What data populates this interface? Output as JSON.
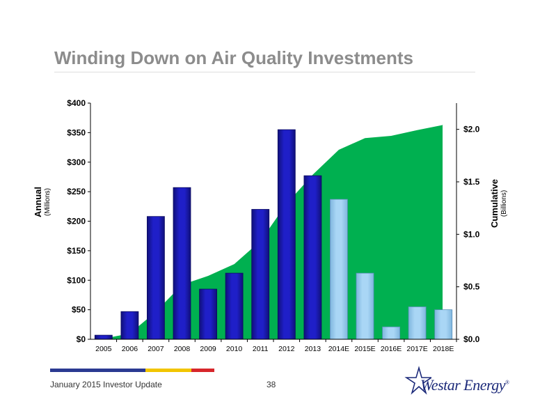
{
  "header": {
    "title": "Winding Down on Air Quality Investments"
  },
  "footer": {
    "left_text": "January 2015 Investor Update",
    "page_number": "38"
  },
  "logo": {
    "text": "Westar Energy",
    "mark": "®"
  },
  "colors": {
    "actual_bar": "#1f1fc8",
    "estimate_bar": "#a9d6f5",
    "cumulative_area": "#00b050",
    "footer_blue": "#2b3a92",
    "footer_yellow": "#f2c500",
    "footer_red": "#d7262b"
  },
  "chart_data": {
    "type": "bar",
    "categories": [
      "2005",
      "2006",
      "2007",
      "2008",
      "2009",
      "2010",
      "2011",
      "2012",
      "2013",
      "2014E",
      "2015E",
      "2016E",
      "2017E",
      "2018E"
    ],
    "series": [
      {
        "name": "Annual",
        "axis": "left",
        "values": [
          7,
          47,
          208,
          257,
          85,
          112,
          220,
          355,
          277,
          237,
          112,
          21,
          55,
          50
        ],
        "estimate_from_index": 9
      },
      {
        "name": "Cumulative",
        "axis": "right",
        "type": "area",
        "values": [
          0.007,
          0.054,
          0.262,
          0.519,
          0.604,
          0.716,
          0.936,
          1.291,
          1.568,
          1.805,
          1.917,
          1.938,
          1.993,
          2.043
        ]
      }
    ],
    "left_axis": {
      "label": "Annual",
      "unit_label": "(Millions)",
      "min": 0,
      "max": 400,
      "ticks": [
        0,
        50,
        100,
        150,
        200,
        250,
        300,
        350,
        400
      ],
      "tick_labels": [
        "$0",
        "$50",
        "$100",
        "$150",
        "$200",
        "$250",
        "$300",
        "$350",
        "$400"
      ]
    },
    "right_axis": {
      "label": "Cumulative",
      "unit_label": "(Billions)",
      "min": 0,
      "max": 2.25,
      "ticks": [
        0,
        0.5,
        1.0,
        1.5,
        2.0
      ],
      "tick_labels": [
        "$0.0",
        "$0.5",
        "$1.0",
        "$1.5",
        "$2.0"
      ]
    },
    "grid": false,
    "legend": "none"
  }
}
